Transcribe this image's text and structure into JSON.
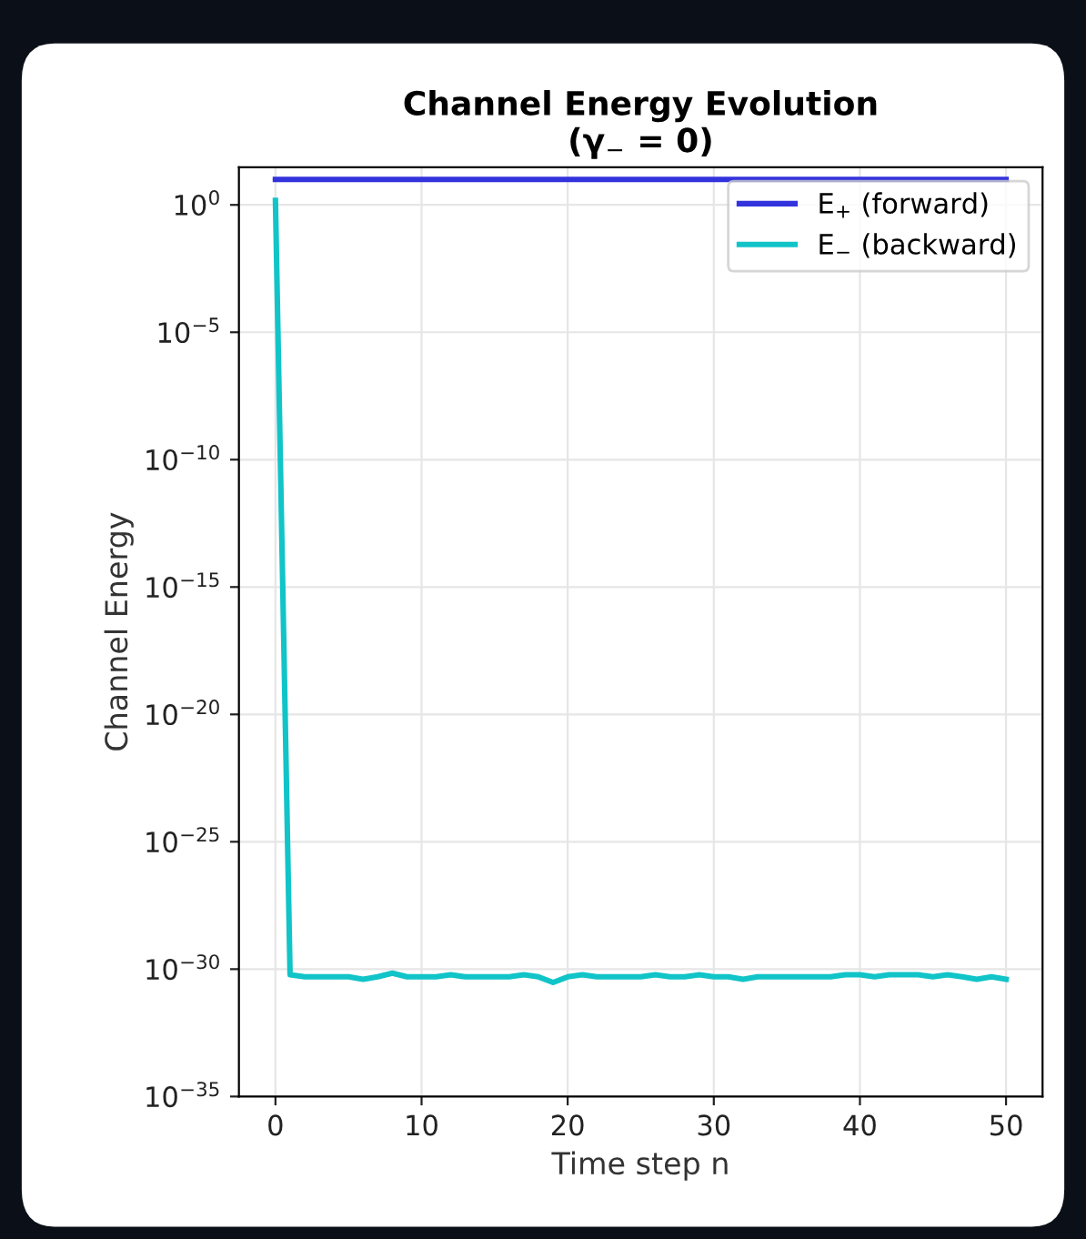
{
  "chart_data": {
    "type": "line",
    "title": "Channel Energy Evolution\n(γ$_{−}$ = 0)",
    "xlabel": "Time step n",
    "ylabel": "Channel Energy",
    "log": "y",
    "grid": true,
    "legend": "top right",
    "line_style": "solid",
    "marker": "none",
    "xlim": [
      -2.5,
      52.5
    ],
    "xticks": [
      0,
      10,
      20,
      30,
      40,
      50
    ],
    "ylim": [
      1e-35,
      30
    ],
    "yticks": [
      {
        "value": 1,
        "label": "10$^{0}$"
      },
      {
        "value": 1e-05,
        "label": "10$^{−5}$"
      },
      {
        "value": 1e-10,
        "label": "10$^{−10}$"
      },
      {
        "value": 1e-15,
        "label": "10$^{−15}$"
      },
      {
        "value": 1e-20,
        "label": "10$^{−20}$"
      },
      {
        "value": 1e-25,
        "label": "10$^{−25}$"
      },
      {
        "value": 1e-30,
        "label": "10$^{−30}$"
      },
      {
        "value": 1e-35,
        "label": "10$^{−35}$"
      }
    ],
    "x": [
      0,
      1,
      2,
      3,
      4,
      5,
      6,
      7,
      8,
      9,
      10,
      11,
      12,
      13,
      14,
      15,
      16,
      17,
      18,
      19,
      20,
      21,
      22,
      23,
      24,
      25,
      26,
      27,
      28,
      29,
      30,
      31,
      32,
      33,
      34,
      35,
      36,
      37,
      38,
      39,
      40,
      41,
      42,
      43,
      44,
      45,
      46,
      47,
      48,
      49,
      50
    ],
    "series": [
      {
        "name": "E$_{+}$ (forward)",
        "color": "#3333dd",
        "values": [
          10,
          10,
          10,
          10,
          10,
          10,
          10,
          10,
          10,
          10,
          10,
          10,
          10,
          10,
          10,
          10,
          10,
          10,
          10,
          10,
          10,
          10,
          10,
          10,
          10,
          10,
          10,
          10,
          10,
          10,
          10,
          10,
          10,
          10,
          10,
          10,
          10,
          10,
          10,
          10,
          10,
          10,
          10,
          10,
          10,
          10,
          10,
          10,
          10,
          10,
          10
        ]
      },
      {
        "name": "E$_{−}$ (backward)",
        "color": "#11c4c8",
        "values": [
          1.5,
          6e-31,
          5e-31,
          5e-31,
          5e-31,
          5e-31,
          4e-31,
          5e-31,
          7e-31,
          5e-31,
          5e-31,
          5e-31,
          6e-31,
          5e-31,
          5e-31,
          5e-31,
          5e-31,
          6e-31,
          5e-31,
          3e-31,
          5e-31,
          6e-31,
          5e-31,
          5e-31,
          5e-31,
          5e-31,
          6e-31,
          5e-31,
          5e-31,
          6e-31,
          5e-31,
          5e-31,
          4e-31,
          5e-31,
          5e-31,
          5e-31,
          5e-31,
          5e-31,
          5e-31,
          6e-31,
          6e-31,
          5e-31,
          6e-31,
          6e-31,
          6e-31,
          5e-31,
          6e-31,
          5e-31,
          4e-31,
          5e-31,
          4e-31
        ]
      }
    ]
  }
}
